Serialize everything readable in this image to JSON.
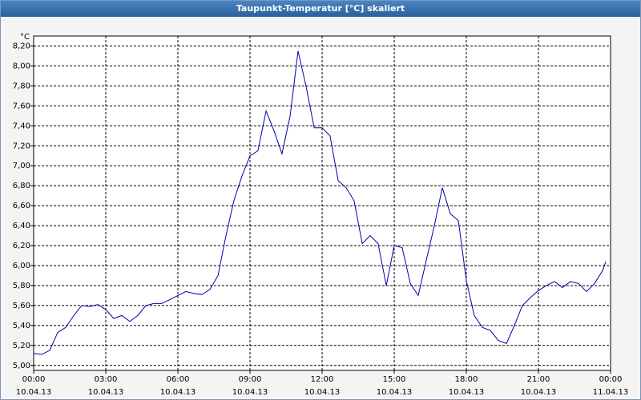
{
  "chart_data": {
    "type": "line",
    "title": "Taupunkt-Temperatur [°C] skaliert",
    "y_unit": "°C",
    "x": [
      0,
      0.33,
      0.67,
      1,
      1.33,
      1.67,
      2,
      2.33,
      2.67,
      3,
      3.33,
      3.67,
      4,
      4.33,
      4.67,
      5,
      5.33,
      5.67,
      6,
      6.33,
      6.67,
      7,
      7.33,
      7.67,
      8,
      8.33,
      8.67,
      9,
      9.33,
      9.67,
      10,
      10.33,
      10.67,
      11,
      11.33,
      11.67,
      12,
      12.33,
      12.67,
      13,
      13.33,
      13.67,
      14,
      14.33,
      14.67,
      15,
      15.33,
      15.67,
      16,
      16.33,
      16.67,
      17,
      17.33,
      17.67,
      18,
      18.33,
      18.67,
      19,
      19.33,
      19.67,
      20,
      20.33,
      20.67,
      21,
      21.33,
      21.67,
      22,
      22.33,
      22.67,
      23,
      23.33,
      23.67,
      23.8
    ],
    "series": [
      {
        "color": "#0000aa",
        "values": [
          5.12,
          5.11,
          5.15,
          5.33,
          5.38,
          5.5,
          5.6,
          5.59,
          5.61,
          5.56,
          5.47,
          5.5,
          5.44,
          5.5,
          5.6,
          5.62,
          5.62,
          5.66,
          5.7,
          5.74,
          5.72,
          5.71,
          5.76,
          5.9,
          6.3,
          6.65,
          6.9,
          7.1,
          7.15,
          7.55,
          7.35,
          7.12,
          7.5,
          8.15,
          7.8,
          7.38,
          7.38,
          7.3,
          6.85,
          6.78,
          6.65,
          6.22,
          6.3,
          6.22,
          5.8,
          6.2,
          6.18,
          5.82,
          5.7,
          6.05,
          6.4,
          6.78,
          6.52,
          6.45,
          5.85,
          5.5,
          5.38,
          5.35,
          5.25,
          5.22,
          5.4,
          5.6,
          5.68,
          5.75,
          5.8,
          5.84,
          5.78,
          5.84,
          5.82,
          5.74,
          5.82,
          5.95,
          6.04
        ]
      }
    ],
    "xlim": [
      0,
      24
    ],
    "xticks": [
      {
        "value": 0,
        "label": "00:00\n10.04.13"
      },
      {
        "value": 3,
        "label": "03:00\n10.04.13"
      },
      {
        "value": 6,
        "label": "06:00\n10.04.13"
      },
      {
        "value": 9,
        "label": "09:00\n10.04.13"
      },
      {
        "value": 12,
        "label": "12:00\n10.04.13"
      },
      {
        "value": 15,
        "label": "15:00\n10.04.13"
      },
      {
        "value": 18,
        "label": "18:00\n10.04.13"
      },
      {
        "value": 21,
        "label": "21:00\n10.04.13"
      },
      {
        "value": 24,
        "label": "00:00\n11.04.13"
      }
    ],
    "ylim": [
      4.95,
      8.3
    ],
    "yticks": [
      {
        "value": 5,
        "label": "5,00"
      },
      {
        "value": 5.2,
        "label": "5,20"
      },
      {
        "value": 5.4,
        "label": "5,40"
      },
      {
        "value": 5.6,
        "label": "5,60"
      },
      {
        "value": 5.8,
        "label": "5,80"
      },
      {
        "value": 6,
        "label": "6,00"
      },
      {
        "value": 6.2,
        "label": "6,20"
      },
      {
        "value": 6.4,
        "label": "6,40"
      },
      {
        "value": 6.6,
        "label": "6,60"
      },
      {
        "value": 6.8,
        "label": "6,80"
      },
      {
        "value": 7,
        "label": "7,00"
      },
      {
        "value": 7.2,
        "label": "7,20"
      },
      {
        "value": 7.4,
        "label": "7,40"
      },
      {
        "value": 7.6,
        "label": "7,60"
      },
      {
        "value": 7.8,
        "label": "7,80"
      },
      {
        "value": 8,
        "label": "8,00"
      },
      {
        "value": 8.2,
        "label": "8,20"
      }
    ],
    "grid": true
  }
}
